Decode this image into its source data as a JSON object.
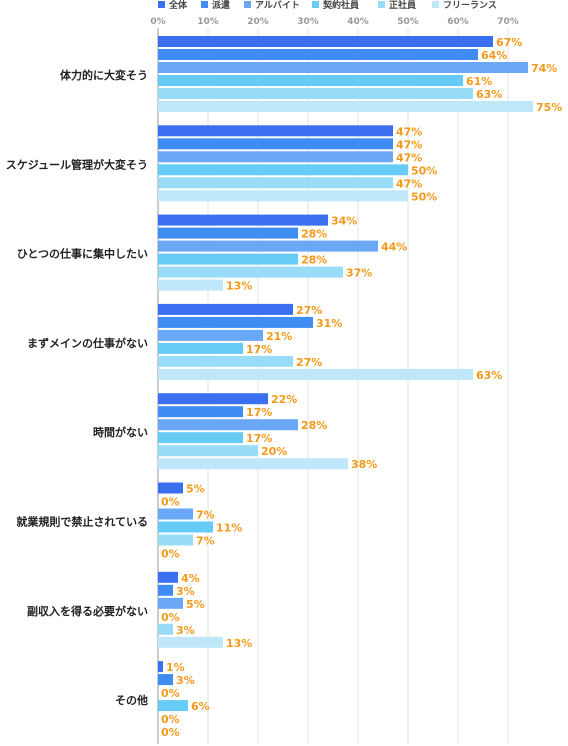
{
  "chart_data": {
    "type": "bar",
    "orientation": "horizontal",
    "xlim": [
      0,
      80
    ],
    "x_ticks": [
      "0%",
      "10%",
      "20%",
      "30%",
      "40%",
      "50%",
      "60%",
      "70%"
    ],
    "x_tick_values": [
      0,
      10,
      20,
      30,
      40,
      50,
      60,
      70
    ],
    "grid": true,
    "legend_position": "top",
    "value_suffix": "%",
    "categories": [
      "体力的に大変そう",
      "スケジュール管理が大変そう",
      "ひとつの仕事に集中したい",
      "まずメインの仕事がない",
      "時間がない",
      "就業規則で禁止されている",
      "副収入を得る必要がない",
      "その他"
    ],
    "series": [
      {
        "name": "全体",
        "color": "#3a6ff0",
        "values": [
          67,
          47,
          34,
          27,
          22,
          5,
          4,
          1
        ]
      },
      {
        "name": "派遣",
        "color": "#3f8df2",
        "values": [
          64,
          47,
          28,
          31,
          17,
          0,
          3,
          3
        ]
      },
      {
        "name": "アルバイト",
        "color": "#6aa7f4",
        "values": [
          74,
          47,
          44,
          21,
          28,
          7,
          5,
          0
        ]
      },
      {
        "name": "契約社員",
        "color": "#66ccf5",
        "values": [
          61,
          50,
          28,
          17,
          17,
          11,
          0,
          6
        ]
      },
      {
        "name": "正社員",
        "color": "#99dcf7",
        "values": [
          63,
          47,
          37,
          27,
          20,
          7,
          3,
          0
        ]
      },
      {
        "name": "フリーランス",
        "color": "#bfe7fa",
        "values": [
          75,
          50,
          13,
          63,
          38,
          0,
          13,
          0
        ]
      }
    ],
    "value_label_color": "#f39a1c"
  }
}
